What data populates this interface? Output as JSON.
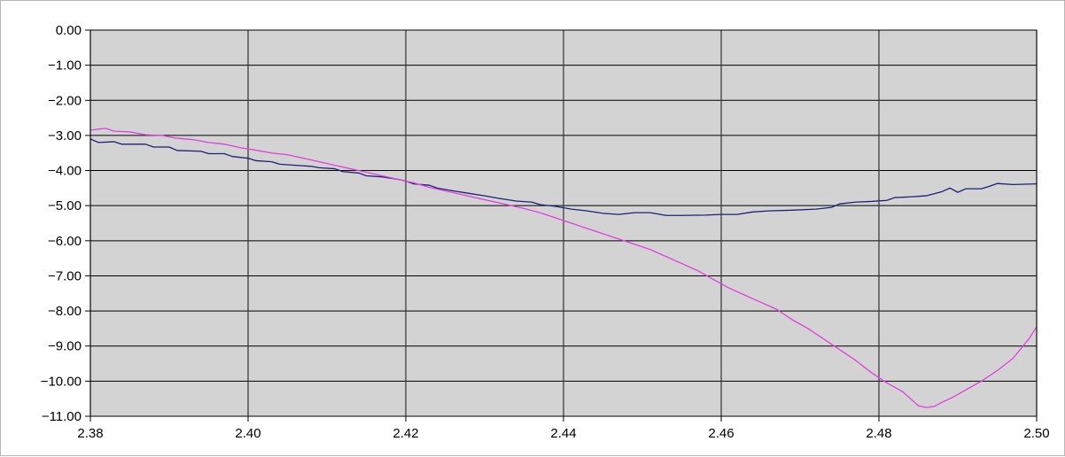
{
  "chart_data": {
    "type": "line",
    "title": "",
    "xlabel": "",
    "ylabel": "",
    "xlim": [
      2.38,
      2.5
    ],
    "ylim": [
      -11,
      0
    ],
    "grid": true,
    "plot_background": "#d3d3d3",
    "x_ticks": [
      2.38,
      2.4,
      2.42,
      2.44,
      2.46,
      2.48,
      2.5
    ],
    "x_tick_labels": [
      "2.38",
      "2.40",
      "2.42",
      "2.44",
      "2.46",
      "2.48",
      "2.50"
    ],
    "y_ticks": [
      0,
      -1,
      -2,
      -3,
      -4,
      -5,
      -6,
      -7,
      -8,
      -9,
      -10,
      -11
    ],
    "y_tick_labels": [
      "0.00",
      "−1.00",
      "−2.00",
      "−3.00",
      "−4.00",
      "−5.00",
      "−6.00",
      "−7.00",
      "−8.00",
      "−9.00",
      "−10.00",
      "−11.00"
    ],
    "series": [
      {
        "color": "#1f1f7a",
        "points": [
          [
            2.38,
            -3.1
          ],
          [
            2.381,
            -3.2
          ],
          [
            2.383,
            -3.18
          ],
          [
            2.384,
            -3.25
          ],
          [
            2.387,
            -3.25
          ],
          [
            2.388,
            -3.33
          ],
          [
            2.39,
            -3.33
          ],
          [
            2.391,
            -3.43
          ],
          [
            2.394,
            -3.45
          ],
          [
            2.395,
            -3.52
          ],
          [
            2.397,
            -3.52
          ],
          [
            2.398,
            -3.6
          ],
          [
            2.4,
            -3.65
          ],
          [
            2.401,
            -3.72
          ],
          [
            2.403,
            -3.75
          ],
          [
            2.404,
            -3.82
          ],
          [
            2.406,
            -3.85
          ],
          [
            2.408,
            -3.88
          ],
          [
            2.409,
            -3.92
          ],
          [
            2.411,
            -3.95
          ],
          [
            2.412,
            -4.03
          ],
          [
            2.414,
            -4.07
          ],
          [
            2.415,
            -4.15
          ],
          [
            2.417,
            -4.18
          ],
          [
            2.419,
            -4.25
          ],
          [
            2.42,
            -4.3
          ],
          [
            2.421,
            -4.38
          ],
          [
            2.423,
            -4.42
          ],
          [
            2.424,
            -4.5
          ],
          [
            2.426,
            -4.58
          ],
          [
            2.428,
            -4.65
          ],
          [
            2.43,
            -4.72
          ],
          [
            2.432,
            -4.8
          ],
          [
            2.434,
            -4.87
          ],
          [
            2.436,
            -4.9
          ],
          [
            2.437,
            -4.97
          ],
          [
            2.439,
            -5.02
          ],
          [
            2.441,
            -5.1
          ],
          [
            2.443,
            -5.15
          ],
          [
            2.445,
            -5.22
          ],
          [
            2.447,
            -5.25
          ],
          [
            2.449,
            -5.2
          ],
          [
            2.451,
            -5.2
          ],
          [
            2.453,
            -5.28
          ],
          [
            2.455,
            -5.28
          ],
          [
            2.458,
            -5.27
          ],
          [
            2.46,
            -5.25
          ],
          [
            2.462,
            -5.25
          ],
          [
            2.464,
            -5.18
          ],
          [
            2.466,
            -5.15
          ],
          [
            2.469,
            -5.13
          ],
          [
            2.472,
            -5.1
          ],
          [
            2.474,
            -5.05
          ],
          [
            2.475,
            -4.95
          ],
          [
            2.477,
            -4.9
          ],
          [
            2.479,
            -4.88
          ],
          [
            2.481,
            -4.85
          ],
          [
            2.482,
            -4.77
          ],
          [
            2.484,
            -4.75
          ],
          [
            2.486,
            -4.72
          ],
          [
            2.488,
            -4.6
          ],
          [
            2.489,
            -4.5
          ],
          [
            2.49,
            -4.62
          ],
          [
            2.491,
            -4.52
          ],
          [
            2.493,
            -4.52
          ],
          [
            2.494,
            -4.45
          ],
          [
            2.495,
            -4.37
          ],
          [
            2.497,
            -4.4
          ],
          [
            2.5,
            -4.38
          ]
        ]
      },
      {
        "color": "#e040e0",
        "points": [
          [
            2.38,
            -2.85
          ],
          [
            2.381,
            -2.82
          ],
          [
            2.382,
            -2.8
          ],
          [
            2.383,
            -2.88
          ],
          [
            2.385,
            -2.9
          ],
          [
            2.387,
            -2.98
          ],
          [
            2.389,
            -3.0
          ],
          [
            2.391,
            -3.08
          ],
          [
            2.393,
            -3.12
          ],
          [
            2.395,
            -3.2
          ],
          [
            2.397,
            -3.25
          ],
          [
            2.399,
            -3.35
          ],
          [
            2.401,
            -3.42
          ],
          [
            2.403,
            -3.5
          ],
          [
            2.405,
            -3.55
          ],
          [
            2.407,
            -3.65
          ],
          [
            2.409,
            -3.75
          ],
          [
            2.411,
            -3.85
          ],
          [
            2.413,
            -3.95
          ],
          [
            2.415,
            -4.05
          ],
          [
            2.417,
            -4.15
          ],
          [
            2.419,
            -4.25
          ],
          [
            2.421,
            -4.35
          ],
          [
            2.423,
            -4.48
          ],
          [
            2.425,
            -4.58
          ],
          [
            2.427,
            -4.68
          ],
          [
            2.429,
            -4.78
          ],
          [
            2.431,
            -4.88
          ],
          [
            2.433,
            -4.98
          ],
          [
            2.435,
            -5.08
          ],
          [
            2.437,
            -5.2
          ],
          [
            2.439,
            -5.35
          ],
          [
            2.441,
            -5.5
          ],
          [
            2.443,
            -5.65
          ],
          [
            2.445,
            -5.8
          ],
          [
            2.447,
            -5.95
          ],
          [
            2.449,
            -6.1
          ],
          [
            2.451,
            -6.25
          ],
          [
            2.453,
            -6.45
          ],
          [
            2.455,
            -6.65
          ],
          [
            2.457,
            -6.85
          ],
          [
            2.459,
            -7.1
          ],
          [
            2.461,
            -7.35
          ],
          [
            2.463,
            -7.55
          ],
          [
            2.465,
            -7.75
          ],
          [
            2.467,
            -7.95
          ],
          [
            2.469,
            -8.25
          ],
          [
            2.471,
            -8.5
          ],
          [
            2.473,
            -8.8
          ],
          [
            2.475,
            -9.1
          ],
          [
            2.477,
            -9.4
          ],
          [
            2.479,
            -9.75
          ],
          [
            2.481,
            -10.05
          ],
          [
            2.483,
            -10.3
          ],
          [
            2.484,
            -10.5
          ],
          [
            2.485,
            -10.7
          ],
          [
            2.486,
            -10.75
          ],
          [
            2.487,
            -10.72
          ],
          [
            2.488,
            -10.6
          ],
          [
            2.489,
            -10.5
          ],
          [
            2.49,
            -10.38
          ],
          [
            2.491,
            -10.25
          ],
          [
            2.493,
            -10.0
          ],
          [
            2.495,
            -9.7
          ],
          [
            2.497,
            -9.35
          ],
          [
            2.499,
            -8.8
          ],
          [
            2.5,
            -8.45
          ]
        ]
      }
    ]
  }
}
